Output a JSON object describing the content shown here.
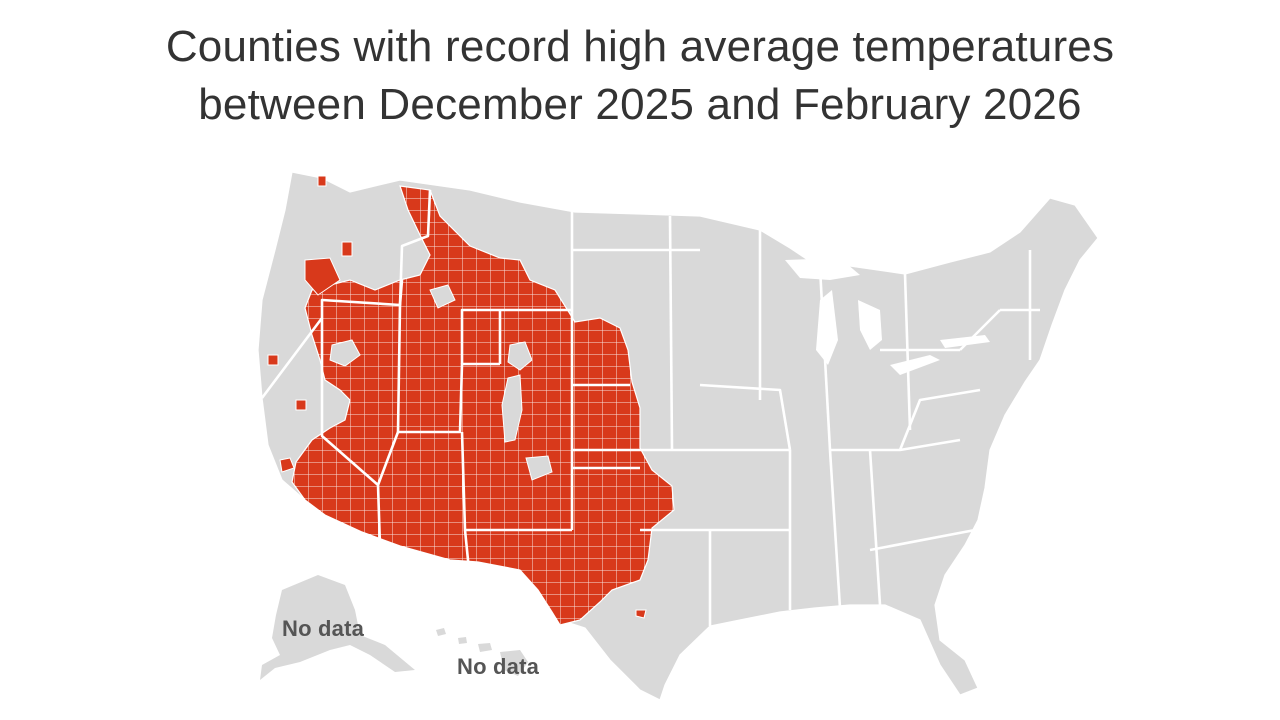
{
  "title_line1": "Counties with record high average temperatures",
  "title_line2": "between December 2025 and February 2026",
  "labels": {
    "alaska": "No data",
    "hawaii": "No data"
  },
  "colors": {
    "record_high": "#d8391b",
    "other_county": "#d9d9d9",
    "borders": "#ffffff",
    "title_text": "#333333",
    "label_text": "#555555"
  },
  "map": {
    "record_high_states": [
      "Washington (parts)",
      "Oregon (parts)",
      "California (south & east)",
      "Nevada",
      "Idaho",
      "Montana (west)",
      "Wyoming",
      "Utah",
      "Colorado",
      "Arizona",
      "New Mexico",
      "Kansas (west)",
      "Nebraska (west)",
      "Oklahoma",
      "Texas (west & panhandle)"
    ]
  }
}
